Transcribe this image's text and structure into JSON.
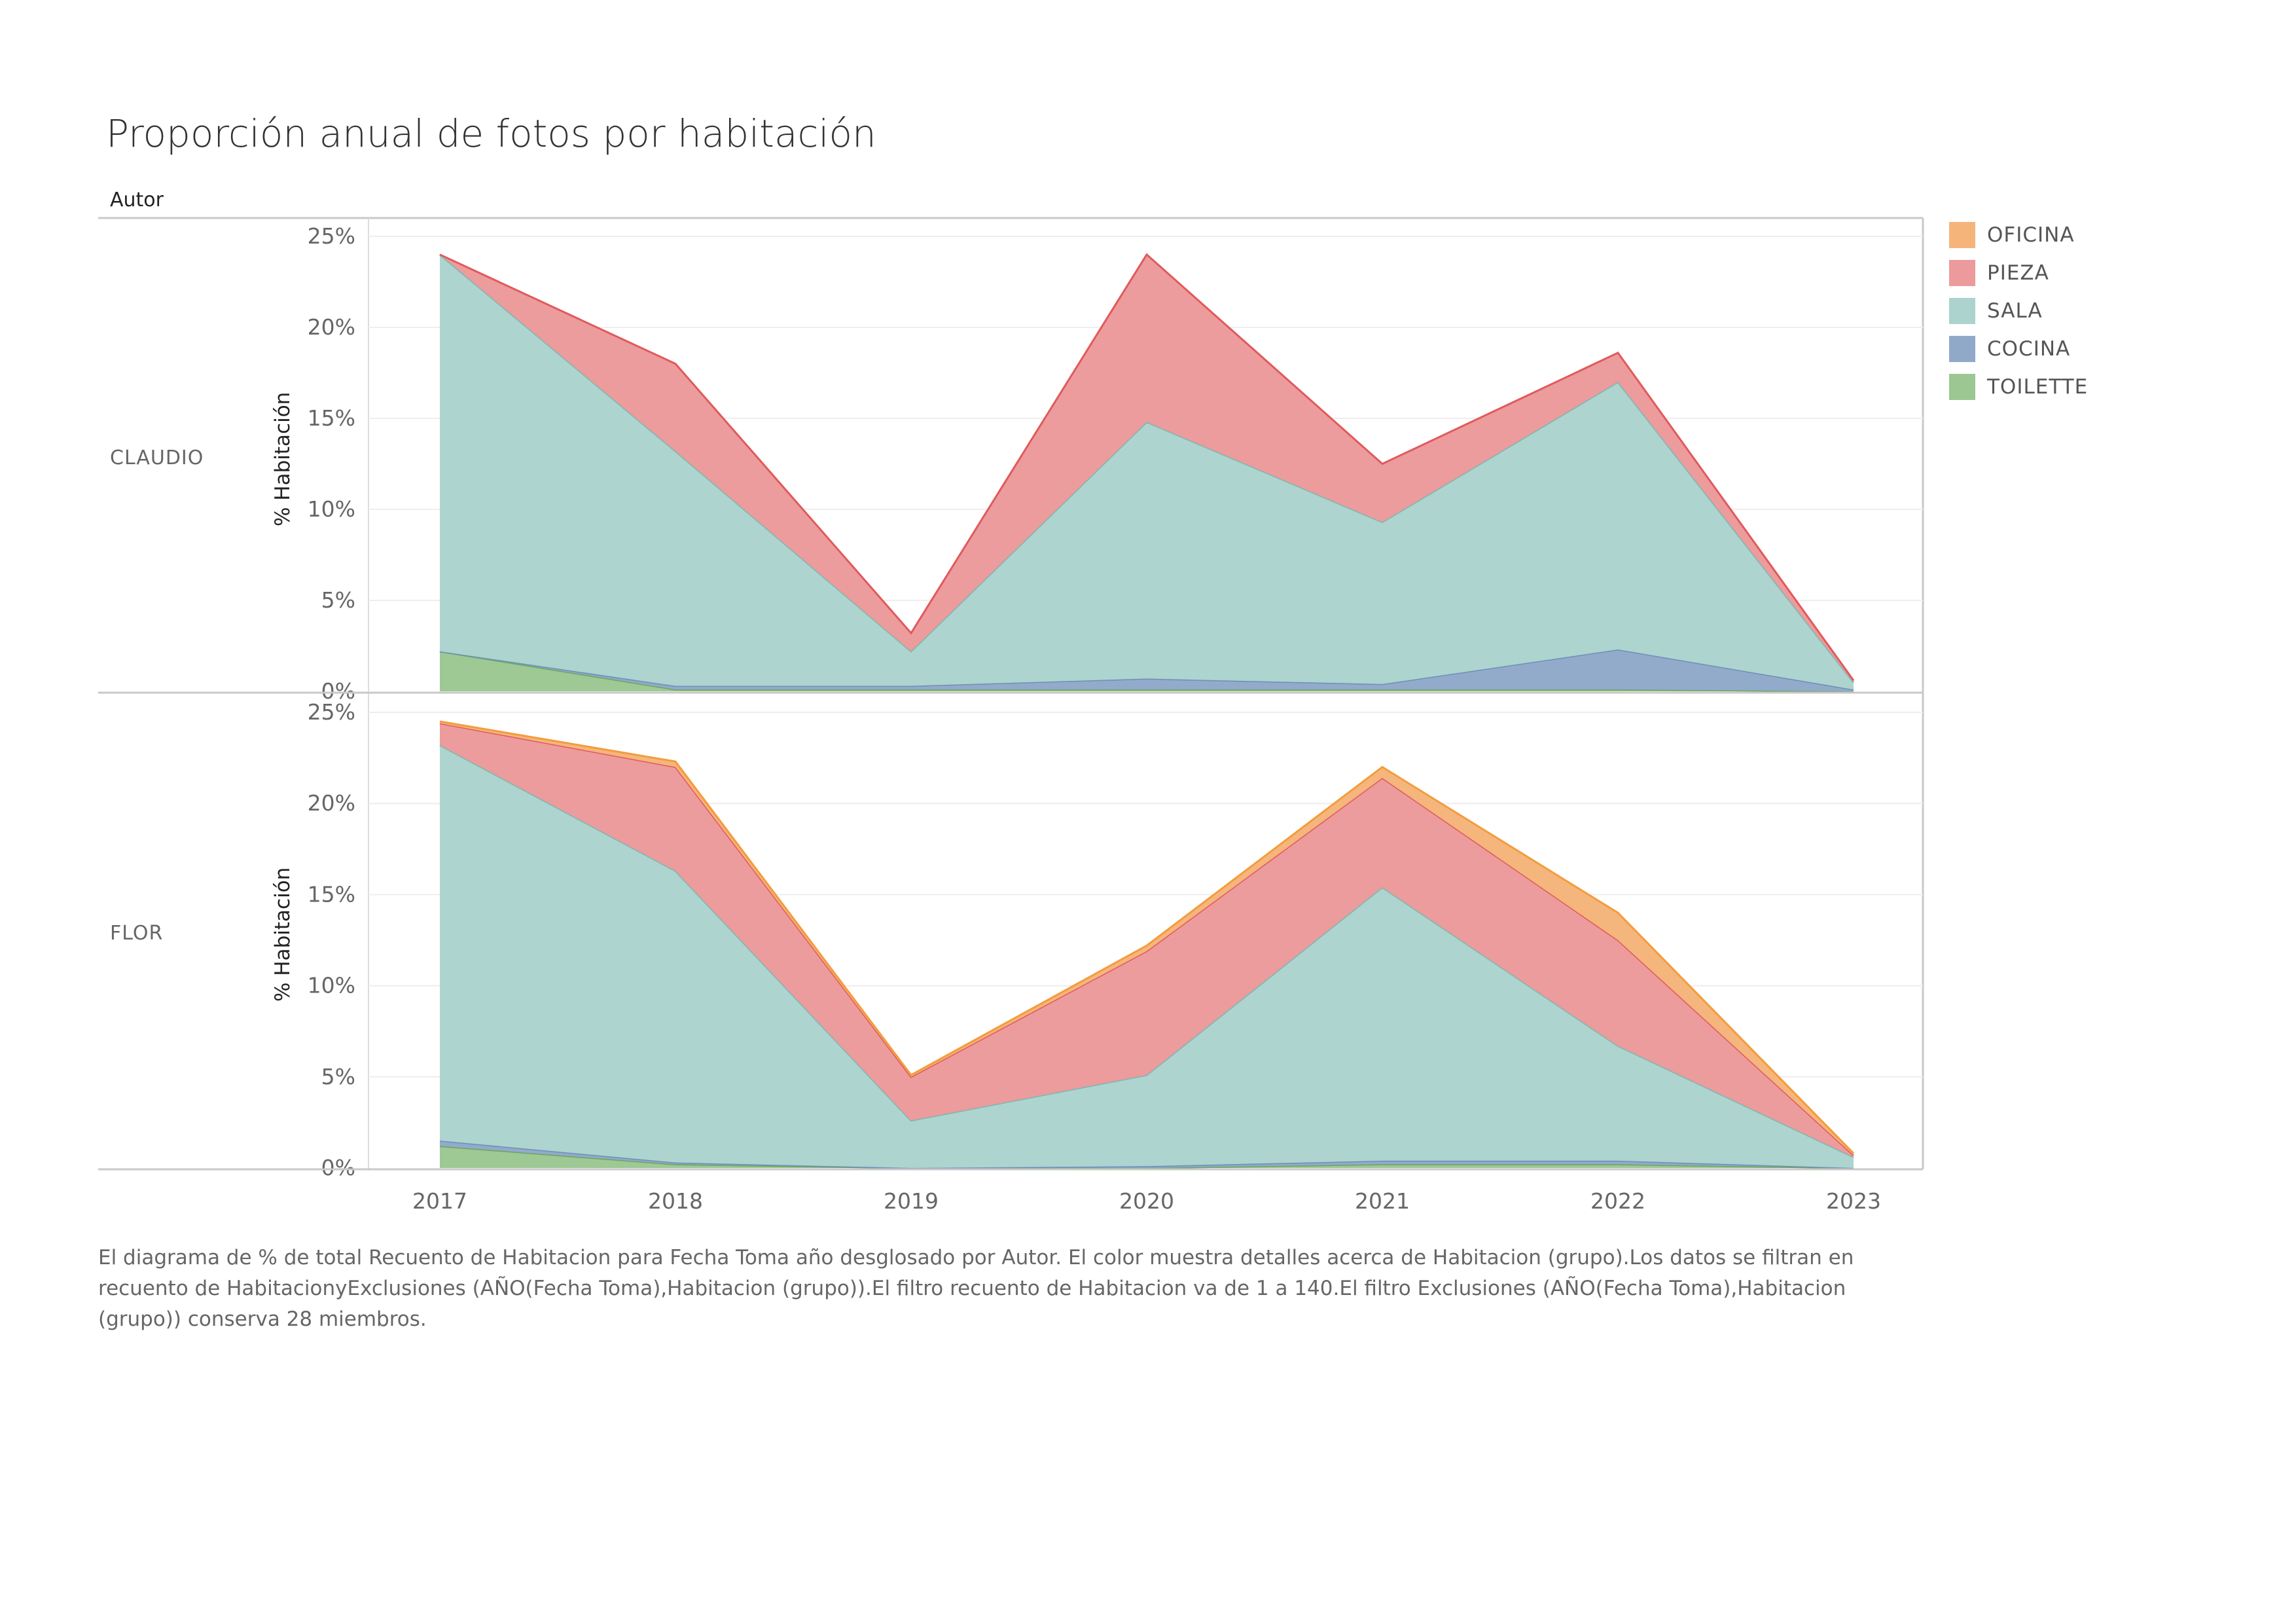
{
  "title": "Proporción anual de fotos por habitación",
  "facet_header": "Autor",
  "caption": "El diagrama de % de total Recuento de Habitacion para Fecha Toma año desglosado por Autor. El color muestra detalles acerca de Habitacion (grupo).Los datos se filtran en recuento de HabitacionyExclusiones (AÑO(Fecha Toma),Habitacion (grupo)).El filtro recuento de Habitacion va de 1 a 140.El filtro Exclusiones (AÑO(Fecha Toma),Habitacion (grupo)) conserva 28 miembros.",
  "legend": [
    {
      "label": "OFICINA",
      "color": "#f5b57a"
    },
    {
      "label": "PIEZA",
      "color": "#ec9a9b"
    },
    {
      "label": "SALA",
      "color": "#acd3ce"
    },
    {
      "label": "COCINA",
      "color": "#91a9c9"
    },
    {
      "label": "TOILETTE",
      "color": "#9cc792"
    }
  ],
  "chart_data": {
    "type": "area",
    "stacked": true,
    "x": [
      "2017",
      "2018",
      "2019",
      "2020",
      "2021",
      "2022",
      "2023"
    ],
    "ylabel": "% Habitación",
    "ylim": [
      0,
      25
    ],
    "yticks": [
      "0%",
      "5%",
      "10%",
      "15%",
      "20%",
      "25%"
    ],
    "grid": true,
    "legend_position": "right",
    "panels": [
      {
        "name": "CLAUDIO",
        "series": [
          {
            "name": "TOILETTE",
            "color": "#9cc792",
            "line": "#6aa860",
            "values": [
              2.2,
              0.1,
              0.1,
              0.1,
              0.1,
              0.1,
              0
            ]
          },
          {
            "name": "COCINA",
            "color": "#91a9c9",
            "line": "#6d8fb8",
            "values": [
              0,
              0.2,
              0.2,
              0.6,
              0.3,
              2.2,
              0.1
            ]
          },
          {
            "name": "SALA",
            "color": "#acd3ce",
            "line": "#7fb7b0",
            "values": [
              21.8,
              12.9,
              1.9,
              14.1,
              8.9,
              14.7,
              0.4
            ]
          },
          {
            "name": "PIEZA",
            "color": "#ec9a9b",
            "line": "#e05a5c",
            "values": [
              0,
              4.8,
              1.0,
              9.2,
              3.2,
              1.6,
              0.1
            ]
          },
          {
            "name": "OFICINA",
            "color": "#f5b57a",
            "line": "#f39c3c",
            "values": [
              0,
              0,
              0,
              0,
              0,
              0,
              0
            ]
          }
        ]
      },
      {
        "name": "FLOR",
        "series": [
          {
            "name": "TOILETTE",
            "color": "#9cc792",
            "line": "#6aa860",
            "values": [
              1.2,
              0.2,
              0,
              0,
              0.2,
              0.2,
              0
            ]
          },
          {
            "name": "COCINA",
            "color": "#91a9c9",
            "line": "#6d8fb8",
            "values": [
              0.3,
              0.1,
              0,
              0.1,
              0.2,
              0.2,
              0
            ]
          },
          {
            "name": "SALA",
            "color": "#acd3ce",
            "line": "#7fb7b0",
            "values": [
              21.7,
              16.0,
              2.6,
              5.0,
              15.0,
              6.3,
              0.6
            ]
          },
          {
            "name": "PIEZA",
            "color": "#ec9a9b",
            "line": "#e05a5c",
            "values": [
              1.2,
              5.7,
              2.4,
              6.8,
              6.0,
              5.8,
              0.1
            ]
          },
          {
            "name": "OFICINA",
            "color": "#f5b57a",
            "line": "#f39c3c",
            "values": [
              0.1,
              0.3,
              0.1,
              0.3,
              0.6,
              1.5,
              0.1
            ]
          }
        ]
      }
    ]
  }
}
